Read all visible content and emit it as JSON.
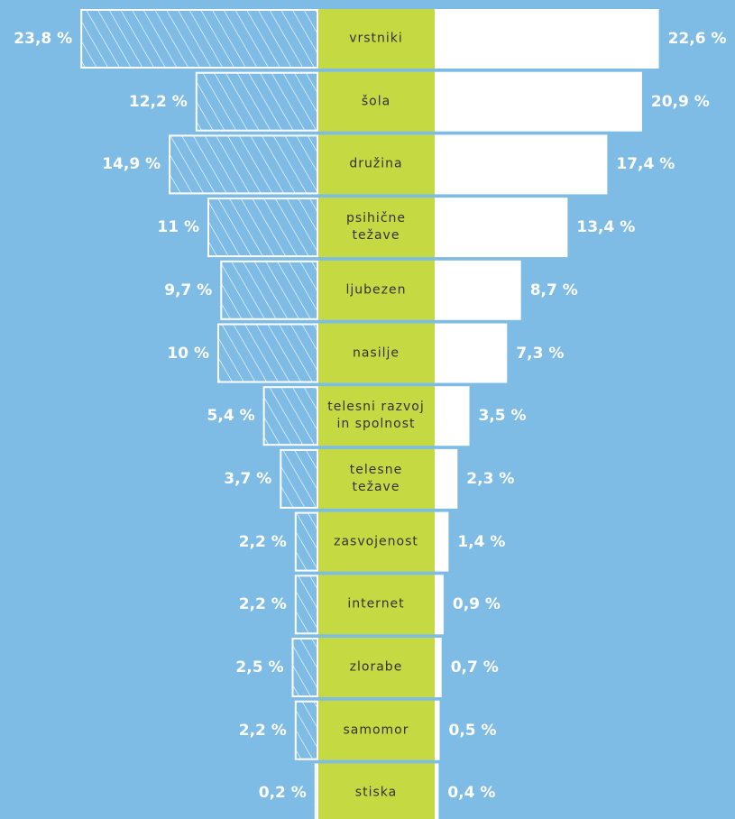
{
  "chart_data": {
    "type": "butterfly",
    "categories": [
      "vrstniki",
      "šola",
      "družina",
      "psihične\ntežave",
      "ljubezen",
      "nasilje",
      "telesni razvoj\nin spolnost",
      "telesne\ntežave",
      "zasvojenost",
      "internet",
      "zlorabe",
      "samomor",
      "stiska"
    ],
    "series": [
      {
        "side": "left",
        "color": "#ffffff",
        "hatch": true,
        "values": [
          23.8,
          12.2,
          14.9,
          11,
          9.7,
          10,
          5.4,
          3.7,
          2.2,
          2.2,
          2.5,
          2.2,
          0.2
        ],
        "value_labels": [
          "23,8 %",
          "12,2 %",
          "14,9 %",
          "11 %",
          "9,7 %",
          "10 %",
          "5,4 %",
          "3,7 %",
          "2,2 %",
          "2,2 %",
          "2,5 %",
          "2,2 %",
          "0,2 %"
        ]
      },
      {
        "side": "right",
        "color": "#ffffff",
        "hatch": false,
        "values": [
          22.6,
          20.9,
          17.4,
          13.4,
          8.7,
          7.3,
          3.5,
          2.3,
          1.4,
          0.9,
          0.7,
          0.5,
          0.4
        ],
        "value_labels": [
          "22,6 %",
          "20,9 %",
          "17,4 %",
          "13,4 %",
          "8,7 %",
          "7,3 %",
          "3,5 %",
          "2,3 %",
          "1,4 %",
          "0,9 %",
          "0,7 %",
          "0,5 %",
          "0,4 %"
        ]
      }
    ],
    "category_color": "#c5d943",
    "background": "#7fbce5"
  }
}
